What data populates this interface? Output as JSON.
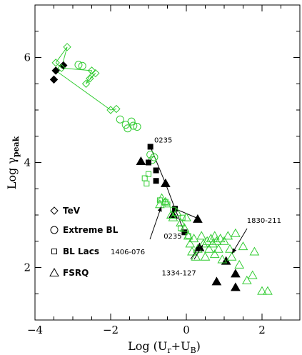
{
  "chart_data": {
    "type": "scatter",
    "xlabel": "Log (U_r+U_B)",
    "ylabel": "Log γ_peak",
    "xlim": [
      -4,
      3
    ],
    "ylim": [
      1,
      7
    ],
    "xticks": [
      -4,
      -2,
      0,
      2
    ],
    "yticks": [
      2,
      4,
      6
    ],
    "colors": {
      "green": "#33cc33",
      "black": "#000000"
    },
    "legend": [
      {
        "marker": "diamond",
        "label": "TeV"
      },
      {
        "marker": "circle",
        "label": "Extreme BL"
      },
      {
        "marker": "square",
        "label": "BL Lacs"
      },
      {
        "marker": "triangle",
        "label": "FSRQ"
      }
    ],
    "series": [
      {
        "marker": "diamond",
        "fill": "black",
        "points": [
          [
            -3.5,
            5.58
          ],
          [
            -3.45,
            5.75
          ],
          [
            -3.25,
            5.85
          ]
        ]
      },
      {
        "marker": "diamond",
        "fill": "none",
        "points": [
          [
            -3.45,
            5.9
          ],
          [
            -3.15,
            6.2
          ],
          [
            -3.3,
            5.8
          ],
          [
            -2.55,
            5.6
          ],
          [
            -2.65,
            5.5
          ],
          [
            -2.5,
            5.75
          ],
          [
            -2.4,
            5.7
          ],
          [
            -2.0,
            5.0
          ],
          [
            -1.85,
            5.02
          ]
        ]
      },
      {
        "marker": "circle",
        "fill": "none",
        "points": [
          [
            -2.85,
            5.86
          ],
          [
            -2.75,
            5.84
          ],
          [
            -1.75,
            4.82
          ],
          [
            -1.6,
            4.72
          ],
          [
            -1.55,
            4.65
          ],
          [
            -1.45,
            4.78
          ],
          [
            -1.4,
            4.7
          ],
          [
            -1.3,
            4.68
          ],
          [
            -0.95,
            4.15
          ],
          [
            -0.9,
            4.05
          ],
          [
            -0.85,
            4.1
          ]
        ]
      },
      {
        "marker": "square",
        "fill": "black",
        "points": [
          [
            -0.95,
            4.3
          ],
          [
            -1.0,
            4.0
          ],
          [
            -0.8,
            3.85
          ],
          [
            -0.8,
            3.65
          ],
          [
            -0.3,
            3.12
          ],
          [
            -0.05,
            2.67
          ]
        ]
      },
      {
        "marker": "square",
        "fill": "none",
        "points": [
          [
            -1.1,
            3.7
          ],
          [
            -1.05,
            3.6
          ],
          [
            -1.0,
            3.78
          ],
          [
            -0.7,
            3.28
          ],
          [
            -0.55,
            3.25
          ],
          [
            -0.5,
            3.2
          ],
          [
            -0.35,
            3.1
          ],
          [
            -0.15,
            2.75
          ],
          [
            -0.1,
            2.95
          ],
          [
            0.05,
            2.6
          ]
        ]
      },
      {
        "marker": "triangle",
        "fill": "black",
        "points": [
          [
            -1.2,
            4.02
          ],
          [
            -0.55,
            3.6
          ],
          [
            -0.35,
            3.0
          ],
          [
            0.3,
            2.92
          ],
          [
            0.35,
            2.38
          ],
          [
            0.8,
            1.73
          ],
          [
            1.05,
            2.12
          ],
          [
            1.3,
            1.88
          ],
          [
            1.3,
            1.62
          ]
        ]
      },
      {
        "marker": "triangle",
        "fill": "none",
        "points": [
          [
            -0.7,
            3.2
          ],
          [
            -0.65,
            3.32
          ],
          [
            -0.55,
            3.25
          ],
          [
            -0.4,
            3.0
          ],
          [
            -0.35,
            2.95
          ],
          [
            -0.25,
            3.05
          ],
          [
            -0.15,
            2.85
          ],
          [
            -0.05,
            2.75
          ],
          [
            0.0,
            2.95
          ],
          [
            0.05,
            2.6
          ],
          [
            0.1,
            2.45
          ],
          [
            0.15,
            2.3
          ],
          [
            0.2,
            2.55
          ],
          [
            0.25,
            2.2
          ],
          [
            0.3,
            2.35
          ],
          [
            0.4,
            2.6
          ],
          [
            0.45,
            2.45
          ],
          [
            0.5,
            2.2
          ],
          [
            0.55,
            2.5
          ],
          [
            0.6,
            2.35
          ],
          [
            0.65,
            2.55
          ],
          [
            0.7,
            2.45
          ],
          [
            0.75,
            2.6
          ],
          [
            0.75,
            2.25
          ],
          [
            0.8,
            2.5
          ],
          [
            0.85,
            2.35
          ],
          [
            0.9,
            2.55
          ],
          [
            0.95,
            2.15
          ],
          [
            1.0,
            2.5
          ],
          [
            1.1,
            2.6
          ],
          [
            1.15,
            2.35
          ],
          [
            1.2,
            2.2
          ],
          [
            1.3,
            2.65
          ],
          [
            1.4,
            2.05
          ],
          [
            1.5,
            2.4
          ],
          [
            1.6,
            1.75
          ],
          [
            1.75,
            1.85
          ],
          [
            1.8,
            2.3
          ],
          [
            2.0,
            1.55
          ],
          [
            2.15,
            1.55
          ]
        ]
      }
    ],
    "lines": [
      {
        "color": "green",
        "points": [
          [
            -3.45,
            5.9
          ],
          [
            -3.15,
            6.2
          ],
          [
            -3.3,
            5.8
          ],
          [
            -3.45,
            5.9
          ]
        ]
      },
      {
        "color": "green",
        "points": [
          [
            -3.3,
            5.8
          ],
          [
            -2.5,
            5.75
          ],
          [
            -2.65,
            5.5
          ],
          [
            -2.4,
            5.7
          ],
          [
            -2.55,
            5.6
          ]
        ]
      },
      {
        "color": "green",
        "points": [
          [
            -3.45,
            5.75
          ],
          [
            -2.0,
            5.0
          ],
          [
            -1.85,
            5.02
          ]
        ]
      },
      {
        "color": "black",
        "points": [
          [
            -0.95,
            4.3
          ],
          [
            -0.55,
            3.6
          ],
          [
            -0.3,
            3.12
          ],
          [
            0.35,
            2.92
          ]
        ]
      },
      {
        "color": "black",
        "points": [
          [
            -0.3,
            3.12
          ],
          [
            -0.05,
            2.67
          ]
        ]
      }
    ],
    "annotations": [
      {
        "text": "0235",
        "at": [
          -0.85,
          4.38
        ]
      },
      {
        "text": "0235",
        "at": [
          -0.6,
          2.55
        ]
      },
      {
        "text": "1406-076",
        "at": [
          -2.0,
          2.25
        ]
      },
      {
        "text": "1334-127",
        "at": [
          -0.65,
          1.85
        ]
      },
      {
        "text": "1830-211",
        "at": [
          1.6,
          2.85
        ]
      }
    ]
  }
}
